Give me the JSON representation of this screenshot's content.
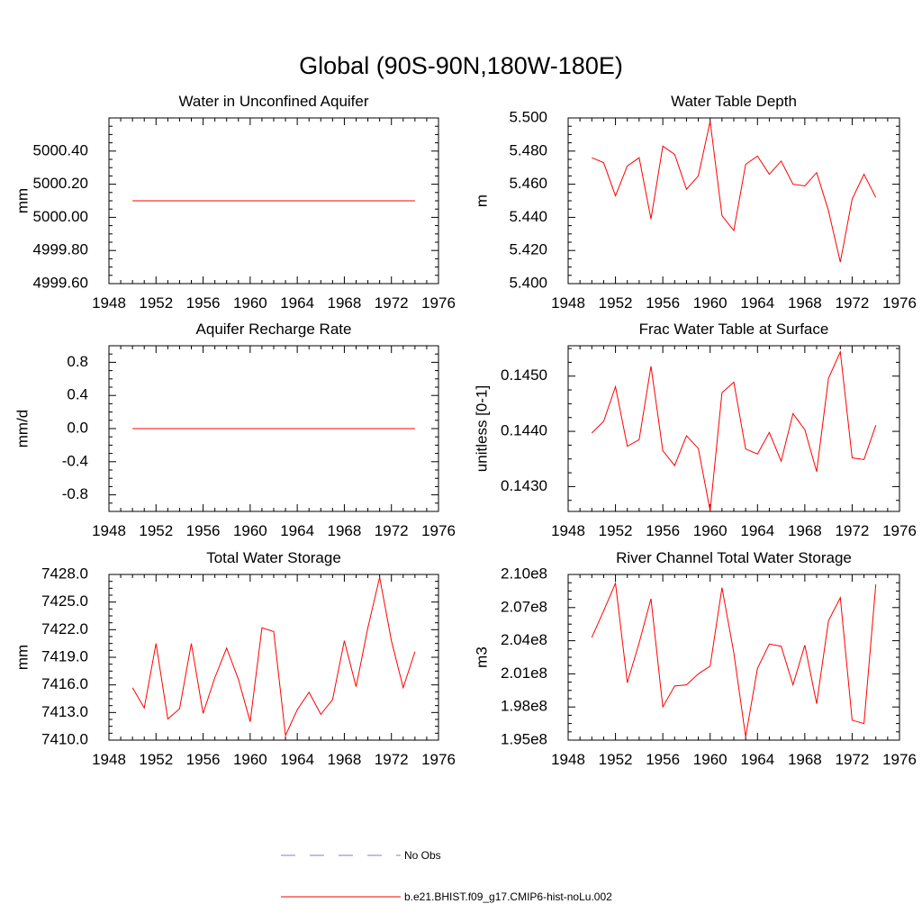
{
  "title": "Global (90S-90N,180W-180E)",
  "colors": {
    "model": "#ff0000",
    "obs": "#7f7fbf",
    "frame": "#000000"
  },
  "legend": {
    "items": [
      {
        "label": "No Obs",
        "style": "dashed",
        "color": "#7f7fbf"
      },
      {
        "label": "b.e21.BHIST.f09_g17.CMIP6-hist-noLu.002",
        "style": "solid",
        "color": "#ff0000"
      }
    ]
  },
  "chart_data": [
    {
      "type": "line",
      "title": "Water in Unconfined Aquifer",
      "ylabel": "mm",
      "xlim": [
        1948,
        1976
      ],
      "ylim": [
        4999.6,
        5000.6
      ],
      "xticks": [
        "1948",
        "1952",
        "1956",
        "1960",
        "1964",
        "1968",
        "1972",
        "1976"
      ],
      "yticks": [
        "4999.60",
        "4999.80",
        "5000.00",
        "5000.20",
        "5000.40"
      ],
      "x": [
        1950,
        1951,
        1952,
        1953,
        1954,
        1955,
        1956,
        1957,
        1958,
        1959,
        1960,
        1961,
        1962,
        1963,
        1964,
        1965,
        1966,
        1967,
        1968,
        1969,
        1970,
        1971,
        1972,
        1973,
        1974
      ],
      "series": [
        {
          "values": [
            5000.1,
            5000.1,
            5000.1,
            5000.1,
            5000.1,
            5000.1,
            5000.1,
            5000.1,
            5000.1,
            5000.1,
            5000.1,
            5000.1,
            5000.1,
            5000.1,
            5000.1,
            5000.1,
            5000.1,
            5000.1,
            5000.1,
            5000.1,
            5000.1,
            5000.1,
            5000.1,
            5000.1,
            5000.1
          ]
        }
      ]
    },
    {
      "type": "line",
      "title": "Water Table Depth",
      "ylabel": "m",
      "xlim": [
        1948,
        1976
      ],
      "ylim": [
        5.4,
        5.5
      ],
      "xticks": [
        "1948",
        "1952",
        "1956",
        "1960",
        "1964",
        "1968",
        "1972",
        "1976"
      ],
      "yticks": [
        "5.400",
        "5.420",
        "5.440",
        "5.460",
        "5.480",
        "5.500"
      ],
      "x": [
        1950,
        1951,
        1952,
        1953,
        1954,
        1955,
        1956,
        1957,
        1958,
        1959,
        1960,
        1961,
        1962,
        1963,
        1964,
        1965,
        1966,
        1967,
        1968,
        1969,
        1970,
        1971,
        1972,
        1973,
        1974
      ],
      "series": [
        {
          "values": [
            5.476,
            5.473,
            5.453,
            5.471,
            5.476,
            5.439,
            5.483,
            5.478,
            5.457,
            5.465,
            5.498,
            5.441,
            5.432,
            5.472,
            5.477,
            5.466,
            5.474,
            5.46,
            5.459,
            5.467,
            5.444,
            5.413,
            5.451,
            5.466,
            5.452
          ]
        }
      ]
    },
    {
      "type": "line",
      "title": "Aquifer Recharge Rate",
      "ylabel": "mm/d",
      "xlim": [
        1948,
        1976
      ],
      "ylim": [
        -1.0,
        1.0
      ],
      "xticks": [
        "1948",
        "1952",
        "1956",
        "1960",
        "1964",
        "1968",
        "1972",
        "1976"
      ],
      "yticks": [
        "-0.8",
        "-0.4",
        "0.0",
        "0.4",
        "0.8"
      ],
      "x": [
        1950,
        1951,
        1952,
        1953,
        1954,
        1955,
        1956,
        1957,
        1958,
        1959,
        1960,
        1961,
        1962,
        1963,
        1964,
        1965,
        1966,
        1967,
        1968,
        1969,
        1970,
        1971,
        1972,
        1973,
        1974
      ],
      "series": [
        {
          "values": [
            0,
            0,
            0,
            0,
            0,
            0,
            0,
            0,
            0,
            0,
            0,
            0,
            0,
            0,
            0,
            0,
            0,
            0,
            0,
            0,
            0,
            0,
            0,
            0,
            0
          ]
        }
      ]
    },
    {
      "type": "line",
      "title": "Frac Water Table at Surface",
      "ylabel": "unitless [0-1]",
      "xlim": [
        1948,
        1976
      ],
      "ylim": [
        0.14255,
        0.14555
      ],
      "xticks": [
        "1948",
        "1952",
        "1956",
        "1960",
        "1964",
        "1968",
        "1972",
        "1976"
      ],
      "yticks": [
        "0.1430",
        "0.1440",
        "0.1450"
      ],
      "x": [
        1950,
        1951,
        1952,
        1953,
        1954,
        1955,
        1956,
        1957,
        1958,
        1959,
        1960,
        1961,
        1962,
        1963,
        1964,
        1965,
        1966,
        1967,
        1968,
        1969,
        1970,
        1971,
        1972,
        1973,
        1974
      ],
      "series": [
        {
          "values": [
            0.14397,
            0.14418,
            0.14481,
            0.14373,
            0.14385,
            0.14518,
            0.14365,
            0.14338,
            0.14392,
            0.14369,
            0.14256,
            0.1447,
            0.14489,
            0.14368,
            0.14359,
            0.14398,
            0.14346,
            0.14432,
            0.14403,
            0.14327,
            0.14496,
            0.14544,
            0.14352,
            0.14349,
            0.14411
          ]
        }
      ]
    },
    {
      "type": "line",
      "title": "Total Water Storage",
      "ylabel": "mm",
      "xlim": [
        1948,
        1976
      ],
      "ylim": [
        7410.0,
        7428.0
      ],
      "xticks": [
        "1948",
        "1952",
        "1956",
        "1960",
        "1964",
        "1968",
        "1972",
        "1976"
      ],
      "yticks": [
        "7410.0",
        "7413.0",
        "7416.0",
        "7419.0",
        "7422.0",
        "7425.0",
        "7428.0"
      ],
      "x": [
        1950,
        1951,
        1952,
        1953,
        1954,
        1955,
        1956,
        1957,
        1958,
        1959,
        1960,
        1961,
        1962,
        1963,
        1964,
        1965,
        1966,
        1967,
        1968,
        1969,
        1970,
        1971,
        1972,
        1973,
        1974
      ],
      "series": [
        {
          "values": [
            7415.7,
            7413.5,
            7420.5,
            7412.3,
            7413.4,
            7420.5,
            7412.9,
            7416.8,
            7420.0,
            7416.6,
            7412.0,
            7422.2,
            7421.8,
            7410.5,
            7413.3,
            7415.2,
            7412.8,
            7414.4,
            7420.8,
            7415.8,
            7422.2,
            7427.7,
            7420.8,
            7415.7,
            7419.6
          ]
        }
      ]
    },
    {
      "type": "line",
      "title": "River Channel Total Water Storage",
      "ylabel": "m3",
      "xlim": [
        1948,
        1976
      ],
      "ylim": [
        195000000.0,
        210000000.0
      ],
      "xticks": [
        "1948",
        "1952",
        "1956",
        "1960",
        "1964",
        "1968",
        "1972",
        "1976"
      ],
      "yticks": [
        "1.95e8",
        "1.98e8",
        "2.01e8",
        "2.04e8",
        "2.07e8",
        "2.10e8"
      ],
      "x": [
        1950,
        1951,
        1952,
        1953,
        1954,
        1955,
        1956,
        1957,
        1958,
        1959,
        1960,
        1961,
        1962,
        1963,
        1964,
        1965,
        1966,
        1967,
        1968,
        1969,
        1970,
        1971,
        1972,
        1973,
        1974
      ],
      "series": [
        {
          "values": [
            204300000,
            206700000,
            209200000,
            200200000,
            203800000,
            207800000,
            198000000,
            199900000,
            200000000,
            201000000,
            201700000,
            208800000,
            202900000,
            195300000,
            201500000,
            203700000,
            203500000,
            200000000,
            203600000,
            198300000,
            205800000,
            207900000,
            196800000,
            196500000,
            209100000
          ]
        }
      ]
    }
  ]
}
